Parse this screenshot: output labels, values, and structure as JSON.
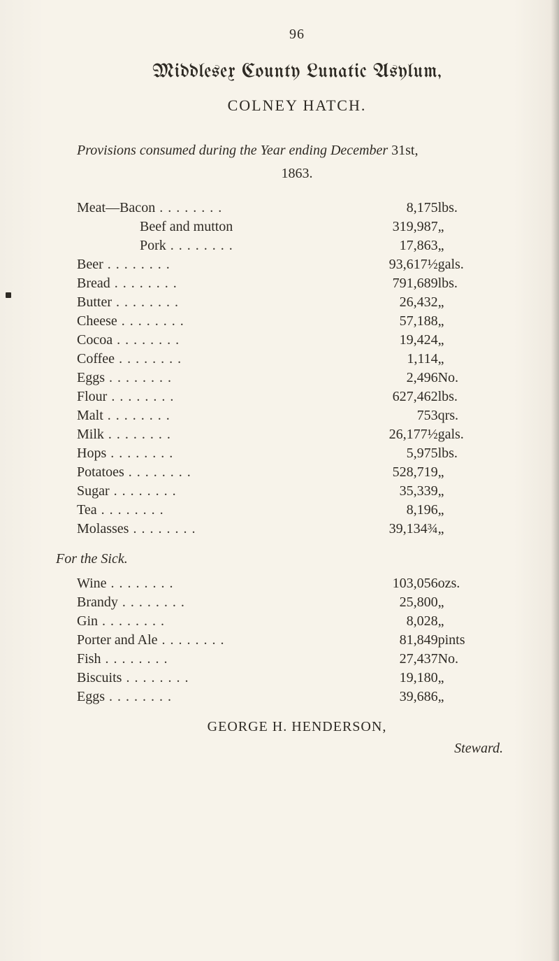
{
  "pagenum": "96",
  "title": "Middlesex County Lunatic Asylum,",
  "subtitle": "COLNEY HATCH.",
  "lead_prefix_italic": "Provisions consumed during the Year ending December",
  "lead_suffix": " 31st,",
  "year": "1863.",
  "provisions": [
    {
      "label": "Meat—Bacon",
      "indent": 0,
      "dots": true,
      "amount": "8,175",
      "unit": "lbs."
    },
    {
      "label": "Beef and mutton",
      "indent": 1,
      "dots": false,
      "amount": "319,987",
      "unit": "„"
    },
    {
      "label": "Pork",
      "indent": 1,
      "dots": true,
      "amount": "17,863",
      "unit": "„"
    },
    {
      "label": "Beer",
      "indent": 0,
      "dots": true,
      "amount": "93,617½",
      "unit": "gals."
    },
    {
      "label": "Bread",
      "indent": 0,
      "dots": true,
      "amount": "791,689",
      "unit": "lbs."
    },
    {
      "label": "Butter",
      "indent": 0,
      "dots": true,
      "amount": "26,432",
      "unit": "„"
    },
    {
      "label": "Cheese",
      "indent": 0,
      "dots": true,
      "amount": "57,188",
      "unit": "„"
    },
    {
      "label": "Cocoa",
      "indent": 0,
      "dots": true,
      "amount": "19,424",
      "unit": "„"
    },
    {
      "label": "Coffee",
      "indent": 0,
      "dots": true,
      "amount": "1,114",
      "unit": "„"
    },
    {
      "label": "Eggs",
      "indent": 0,
      "dots": true,
      "amount": "2,496",
      "unit": "No."
    },
    {
      "label": "Flour",
      "indent": 0,
      "dots": true,
      "amount": "627,462",
      "unit": "lbs."
    },
    {
      "label": "Malt",
      "indent": 0,
      "dots": true,
      "amount": "753",
      "unit": "qrs."
    },
    {
      "label": "Milk",
      "indent": 0,
      "dots": true,
      "amount": "26,177½",
      "unit": "gals."
    },
    {
      "label": "Hops",
      "indent": 0,
      "dots": true,
      "amount": "5,975",
      "unit": "lbs."
    },
    {
      "label": "Potatoes",
      "indent": 0,
      "dots": true,
      "amount": "528,719",
      "unit": "„"
    },
    {
      "label": "Sugar",
      "indent": 0,
      "dots": true,
      "amount": "35,339",
      "unit": "„"
    },
    {
      "label": "Tea",
      "indent": 0,
      "dots": true,
      "amount": "8,196",
      "unit": "„"
    },
    {
      "label": "Molasses",
      "indent": 0,
      "dots": true,
      "amount": "39,134¾",
      "unit": "„"
    }
  ],
  "sick_label": "For the Sick.",
  "sick": [
    {
      "label": "Wine",
      "indent": 0,
      "dots": true,
      "amount": "103,056",
      "unit": "ozs."
    },
    {
      "label": "Brandy",
      "indent": 0,
      "dots": true,
      "amount": "25,800",
      "unit": "„"
    },
    {
      "label": "Gin",
      "indent": 0,
      "dots": true,
      "amount": "8,028",
      "unit": "„"
    },
    {
      "label": "Porter and Ale",
      "indent": 0,
      "dots": true,
      "amount": "81,849",
      "unit": "pints"
    },
    {
      "label": "Fish",
      "indent": 0,
      "dots": true,
      "amount": "27,437",
      "unit": "No."
    },
    {
      "label": "Biscuits",
      "indent": 0,
      "dots": true,
      "amount": "19,180",
      "unit": "„"
    },
    {
      "label": "Eggs",
      "indent": 0,
      "dots": true,
      "amount": "39,686",
      "unit": "„"
    }
  ],
  "signature": "GEORGE H. HENDERSON,",
  "steward": "Steward."
}
